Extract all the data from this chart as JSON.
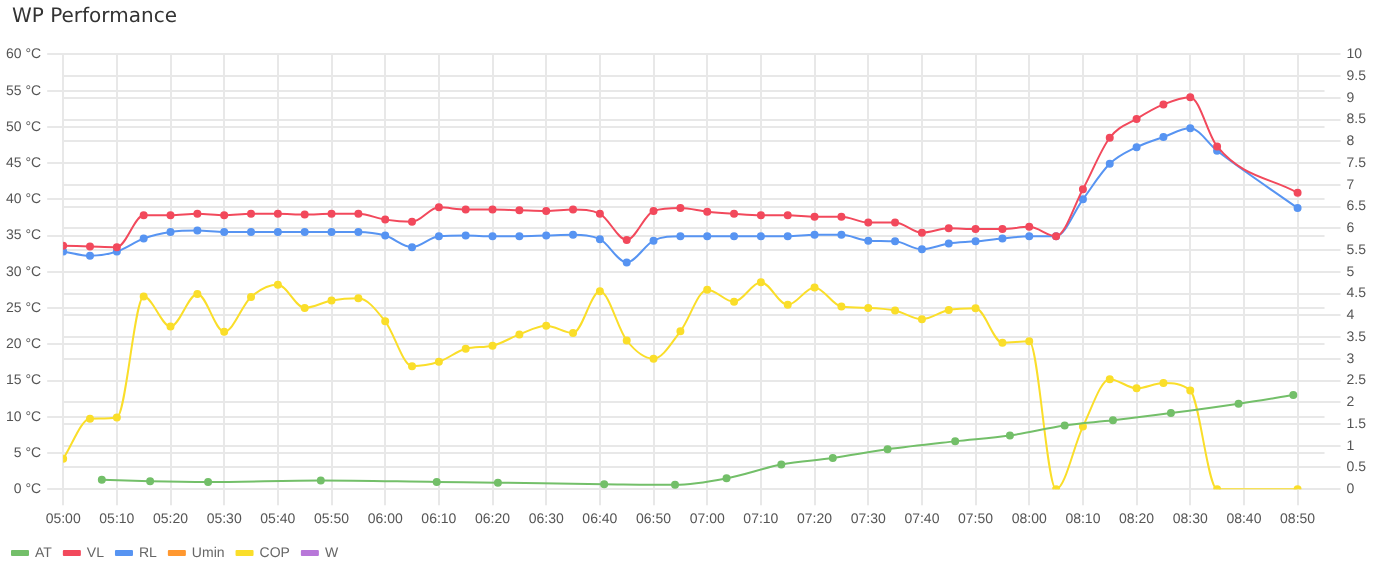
{
  "chart_data": {
    "type": "line",
    "title": "WP Performance",
    "x": [
      5,
      5.0833,
      5.1667,
      5.25,
      5.3333,
      5.4167,
      5.5,
      5.5833,
      5.6667,
      5.75,
      5.8333,
      5.9167,
      6,
      6.0833,
      6.1667,
      6.25,
      6.3333,
      6.4167,
      6.5,
      6.5833,
      6.6667,
      6.75,
      6.8333,
      6.9167,
      7,
      7.0833,
      7.1667,
      7.25,
      7.3333,
      7.4167,
      7.5,
      7.5833,
      7.6667,
      7.75,
      7.8333,
      7.9167,
      8,
      8.0833,
      8.1667,
      8.25,
      8.3333,
      8.4167,
      8.5,
      8.5833,
      8.6667,
      8.75,
      8.8333
    ],
    "series": [
      {
        "name": "AT",
        "color": "#73bf69",
        "x": [
          5.12,
          5.27,
          5.45,
          5.8,
          6.16,
          6.35,
          6.68,
          6.9,
          7.06,
          7.23,
          7.39,
          7.56,
          7.77,
          7.94,
          8.11,
          8.26,
          8.44,
          8.65,
          8.82
        ],
        "values": [
          1.3,
          1.1,
          1.0,
          1.2,
          1.0,
          0.9,
          0.7,
          0.6,
          1.5,
          3.4,
          4.3,
          5.5,
          6.6,
          7.4,
          8.8,
          9.5,
          10.5,
          11.8,
          13.0
        ]
      },
      {
        "name": "VL",
        "color": "#f2495c",
        "values": [
          33.6,
          33.5,
          33.4,
          37.8,
          37.8,
          38.0,
          37.8,
          38.0,
          38.0,
          37.9,
          38.0,
          38.0,
          37.2,
          36.9,
          38.9,
          38.6,
          38.6,
          38.5,
          38.4,
          38.6,
          38.0,
          34.4,
          38.4,
          38.8,
          38.3,
          38.0,
          37.8,
          37.8,
          37.6,
          37.6,
          36.8,
          36.8,
          35.4,
          36.0,
          35.9,
          35.9,
          36.2,
          34.9,
          41.4,
          48.5,
          51.1,
          53.1,
          54.1,
          47.3,
          null,
          null,
          40.9
        ]
      },
      {
        "name": "RL",
        "color": "#5794f2",
        "values": [
          32.8,
          32.2,
          32.8,
          34.6,
          35.5,
          35.7,
          35.5,
          35.5,
          35.5,
          35.5,
          35.5,
          35.5,
          35.0,
          33.4,
          34.9,
          35.0,
          34.9,
          34.9,
          35.0,
          35.1,
          34.5,
          31.3,
          34.3,
          34.9,
          34.9,
          34.9,
          34.9,
          34.9,
          35.1,
          35.1,
          34.3,
          34.2,
          33.1,
          33.9,
          34.2,
          34.6,
          34.9,
          34.9,
          40.0,
          44.9,
          47.2,
          48.6,
          49.8,
          46.7,
          null,
          null,
          38.8
        ]
      },
      {
        "name": "Umin",
        "color": "#ff9830",
        "values": [
          null,
          null,
          null,
          null,
          null,
          null,
          null,
          null,
          null,
          null,
          null,
          null,
          null,
          null,
          null,
          null,
          null,
          null,
          null,
          null,
          null,
          null,
          null,
          null,
          null,
          null,
          null,
          null,
          null,
          null,
          null,
          null,
          null,
          null,
          null,
          null,
          null,
          null,
          null,
          null,
          null,
          null,
          null,
          null,
          null,
          null,
          null
        ]
      },
      {
        "name": "COP",
        "color": "#fade2a",
        "axis": "y2",
        "values": [
          0.7,
          1.62,
          1.65,
          4.43,
          3.74,
          4.49,
          3.62,
          4.42,
          4.7,
          4.17,
          4.34,
          4.39,
          3.86,
          2.83,
          2.93,
          3.23,
          3.3,
          3.56,
          3.76,
          3.59,
          4.55,
          3.42,
          3.0,
          3.63,
          4.59,
          4.31,
          4.76,
          4.24,
          4.64,
          4.2,
          4.17,
          4.11,
          3.91,
          4.12,
          4.16,
          3.37,
          3.4,
          0,
          1.44,
          2.53,
          2.32,
          2.44,
          2.27,
          0,
          null,
          null,
          0
        ]
      },
      {
        "name": "W",
        "color": "#b877d9",
        "axis": "y2",
        "values": [
          null,
          null,
          null,
          null,
          null,
          null,
          null,
          null,
          null,
          null,
          null,
          null,
          null,
          null,
          null,
          null,
          null,
          null,
          null,
          null,
          null,
          null,
          null,
          null,
          null,
          null,
          null,
          null,
          null,
          null,
          null,
          null,
          null,
          null,
          null,
          null,
          null,
          null,
          null,
          null,
          null,
          null,
          null,
          null,
          null,
          null,
          null
        ]
      }
    ],
    "xlim": [
      5,
      8.917
    ],
    "xticks": [
      {
        "value": 5,
        "label": "05:00"
      },
      {
        "value": 5.1667,
        "label": "05:10"
      },
      {
        "value": 5.3333,
        "label": "05:20"
      },
      {
        "value": 5.5,
        "label": "05:30"
      },
      {
        "value": 5.6667,
        "label": "05:40"
      },
      {
        "value": 5.8333,
        "label": "05:50"
      },
      {
        "value": 6,
        "label": "06:00"
      },
      {
        "value": 6.1667,
        "label": "06:10"
      },
      {
        "value": 6.3333,
        "label": "06:20"
      },
      {
        "value": 6.5,
        "label": "06:30"
      },
      {
        "value": 6.6667,
        "label": "06:40"
      },
      {
        "value": 6.8333,
        "label": "06:50"
      },
      {
        "value": 7,
        "label": "07:00"
      },
      {
        "value": 7.1667,
        "label": "07:10"
      },
      {
        "value": 7.3333,
        "label": "07:20"
      },
      {
        "value": 7.5,
        "label": "07:30"
      },
      {
        "value": 7.6667,
        "label": "07:40"
      },
      {
        "value": 7.8333,
        "label": "07:50"
      },
      {
        "value": 8,
        "label": "08:00"
      },
      {
        "value": 8.1667,
        "label": "08:10"
      },
      {
        "value": 8.3333,
        "label": "08:20"
      },
      {
        "value": 8.5,
        "label": "08:30"
      },
      {
        "value": 8.6667,
        "label": "08:40"
      },
      {
        "value": 8.8333,
        "label": "08:50"
      }
    ],
    "ylim": [
      0,
      60
    ],
    "yticks": [
      {
        "value": 0,
        "label": "0 °C"
      },
      {
        "value": 5,
        "label": "5 °C"
      },
      {
        "value": 10,
        "label": "10 °C"
      },
      {
        "value": 15,
        "label": "15 °C"
      },
      {
        "value": 20,
        "label": "20 °C"
      },
      {
        "value": 25,
        "label": "25 °C"
      },
      {
        "value": 30,
        "label": "30 °C"
      },
      {
        "value": 35,
        "label": "35 °C"
      },
      {
        "value": 40,
        "label": "40 °C"
      },
      {
        "value": 45,
        "label": "45 °C"
      },
      {
        "value": 50,
        "label": "50 °C"
      },
      {
        "value": 55,
        "label": "55 °C"
      },
      {
        "value": 60,
        "label": "60 °C"
      }
    ],
    "y2lim": [
      0,
      10
    ],
    "y2ticks": [
      0,
      0.5,
      1,
      1.5,
      2,
      2.5,
      3,
      3.5,
      4,
      4.5,
      5,
      5.5,
      6,
      6.5,
      7,
      7.5,
      8,
      8.5,
      9,
      9.5,
      10
    ],
    "grid": true,
    "legend": "bottom",
    "marker": "circle",
    "line_style": "solid"
  }
}
